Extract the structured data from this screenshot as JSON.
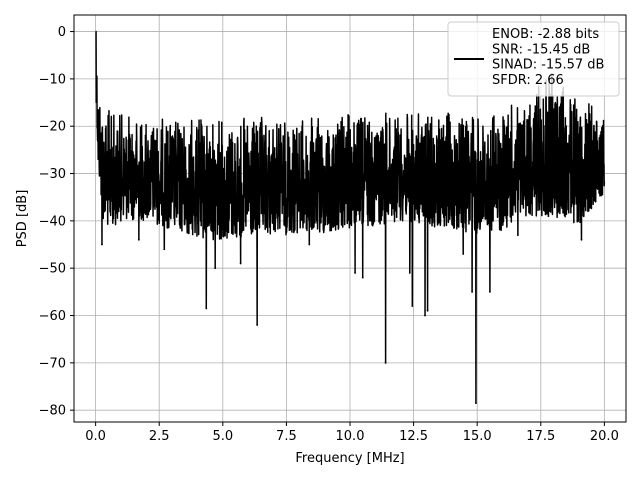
{
  "chart_data": {
    "type": "line",
    "title": "",
    "xlabel": "Frequency [MHz]",
    "ylabel": "PSD [dB]",
    "xlim": [
      -0.85,
      20.85
    ],
    "ylim": [
      -82.5,
      3.5
    ],
    "xticks": [
      0.0,
      2.5,
      5.0,
      7.5,
      10.0,
      12.5,
      15.0,
      17.5,
      20.0
    ],
    "xtick_labels": [
      "0.0",
      "2.5",
      "5.0",
      "7.5",
      "10.0",
      "12.5",
      "15.0",
      "17.5",
      "20.0"
    ],
    "yticks": [
      0,
      -10,
      -20,
      -30,
      -40,
      -50,
      -60,
      -70,
      -80
    ],
    "ytick_labels": [
      "0",
      "−10",
      "−20",
      "−30",
      "−40",
      "−50",
      "−60",
      "−70",
      "−80"
    ],
    "grid": true,
    "legend_position": "top-right",
    "legend_lines": [
      "ENOB: -2.88 bits",
      "SNR: -15.45 dB",
      "SINAD: -15.57 dB",
      "SFDR: 2.66"
    ],
    "series_color": "#000000",
    "series": [
      {
        "x_range": [
          0.0,
          20.0
        ],
        "envelope": {
          "x": [
            0,
            0.1,
            0.3,
            0.5,
            1,
            2,
            3,
            4,
            5,
            6,
            7,
            8,
            9,
            10,
            11,
            12,
            13,
            14,
            15,
            16,
            17,
            18,
            19,
            20
          ],
          "upper": [
            0,
            -10,
            -14,
            -16,
            -17,
            -18,
            -18,
            -18,
            -18,
            -18,
            -18,
            -18,
            -18,
            -17,
            -17,
            -17,
            -17,
            -17,
            -17,
            -16,
            -14,
            -8,
            -14,
            -16
          ],
          "lower": [
            -10,
            -30,
            -40,
            -42,
            -40,
            -40,
            -42,
            -44,
            -44,
            -44,
            -43,
            -43,
            -43,
            -42,
            -41,
            -40,
            -41,
            -42,
            -43,
            -42,
            -39,
            -39,
            -41,
            -34
          ]
        },
        "deep_dips": [
          {
            "x": 0.25,
            "y": -45
          },
          {
            "x": 1.7,
            "y": -44
          },
          {
            "x": 2.7,
            "y": -46
          },
          {
            "x": 4.35,
            "y": -58.5
          },
          {
            "x": 4.7,
            "y": -50
          },
          {
            "x": 5.7,
            "y": -49
          },
          {
            "x": 6.35,
            "y": -62
          },
          {
            "x": 8.4,
            "y": -45
          },
          {
            "x": 10.2,
            "y": -51
          },
          {
            "x": 10.5,
            "y": -52
          },
          {
            "x": 11.4,
            "y": -70
          },
          {
            "x": 12.35,
            "y": -51
          },
          {
            "x": 12.45,
            "y": -58
          },
          {
            "x": 12.95,
            "y": -60
          },
          {
            "x": 13.05,
            "y": -59
          },
          {
            "x": 14.45,
            "y": -47
          },
          {
            "x": 14.8,
            "y": -55
          },
          {
            "x": 14.95,
            "y": -78.5
          },
          {
            "x": 15.5,
            "y": -55
          },
          {
            "x": 16.6,
            "y": -43
          },
          {
            "x": 17.8,
            "y": -39
          },
          {
            "x": 19.1,
            "y": -44
          }
        ]
      }
    ]
  }
}
